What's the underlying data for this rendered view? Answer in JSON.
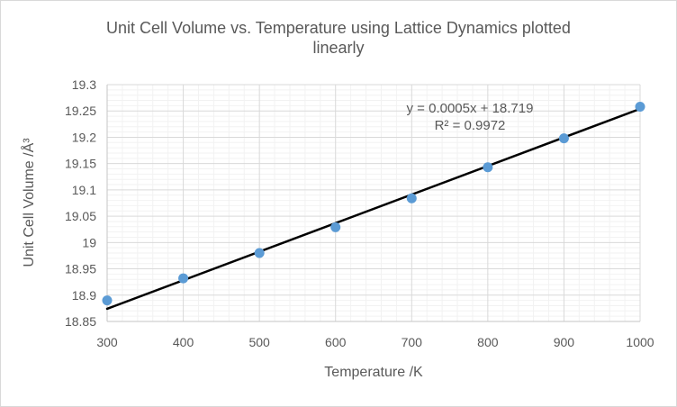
{
  "chart_data": {
    "type": "scatter",
    "title": "Unit Cell Volume vs. Temperature using Lattice Dynamics plotted linearly",
    "title_lines": [
      "Unit Cell Volume vs. Temperature using Lattice Dynamics plotted",
      "linearly"
    ],
    "xlabel": "Temperature /K",
    "ylabel": "Unit Cell Volume /Å³",
    "x": [
      300,
      400,
      500,
      600,
      700,
      800,
      900,
      1000
    ],
    "y": [
      18.89,
      18.932,
      18.98,
      19.029,
      19.084,
      19.143,
      19.198,
      19.258
    ],
    "xlim": [
      300,
      1000
    ],
    "ylim": [
      18.85,
      19.3
    ],
    "xticks": {
      "values": [
        300,
        400,
        500,
        600,
        700,
        800,
        900,
        1000
      ],
      "labels": [
        "300",
        "400",
        "500",
        "600",
        "700",
        "800",
        "900",
        "1000"
      ]
    },
    "yticks": {
      "values": [
        18.85,
        18.9,
        18.95,
        19.0,
        19.05,
        19.1,
        19.15,
        19.2,
        19.25,
        19.3
      ],
      "labels": [
        "18.85",
        "18.9",
        "18.95",
        "19",
        "19.05",
        "19.1",
        "19.15",
        "19.2",
        "19.25",
        "19.3"
      ]
    },
    "x_minor_step": 20,
    "y_minor_step": 0.01,
    "grid": {
      "major": true,
      "minor": true
    },
    "legend": "none",
    "trendline": {
      "x": [
        300,
        1000
      ],
      "y": [
        18.874,
        19.254
      ],
      "equation": "y = 0.0005x + 18.719",
      "r_squared": "R² = 0.9972"
    },
    "colors": {
      "marker": "#5B9BD5",
      "trendline": "#000000",
      "grid_major": "#D9D9D9",
      "grid_minor": "#F2F2F2",
      "axis_line": "#C6C6C6",
      "text": "#595959",
      "border": "#D9D9D9",
      "background": "#FFFFFF"
    }
  }
}
